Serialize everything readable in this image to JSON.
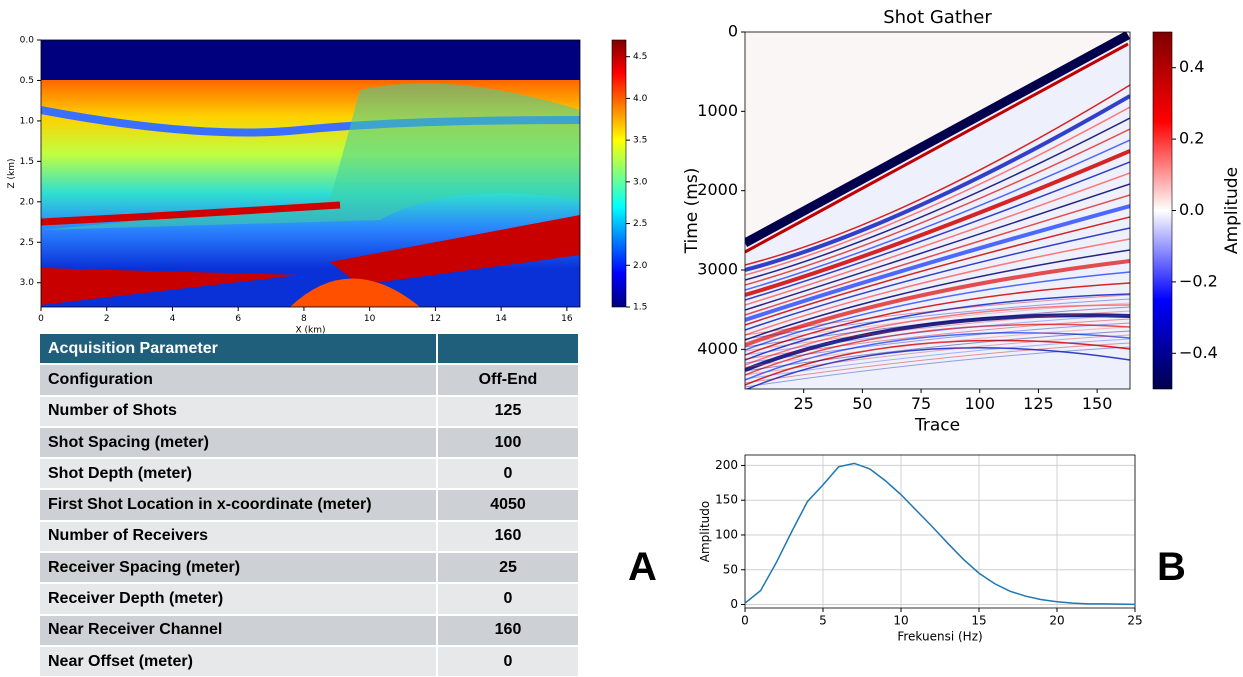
{
  "chart_data": [
    {
      "type": "heatmap",
      "xlabel": "X (km)",
      "ylabel": "Z (km)",
      "xlim": [
        0,
        16.4
      ],
      "xticks": [
        0,
        2,
        4,
        6,
        8,
        10,
        12,
        14,
        16
      ],
      "ylim": [
        3.3,
        0
      ],
      "yticks": [
        {
          "value": 0,
          "label": "0.0"
        },
        0.5,
        {
          "value": 1,
          "label": "1.0"
        },
        1.5,
        {
          "value": 2,
          "label": "2.0"
        },
        2.5,
        {
          "value": 3,
          "label": "3.0"
        }
      ],
      "colorbar": {
        "clim": [
          1.5,
          4.7
        ],
        "ticks": [
          1.5,
          {
            "value": 2,
            "label": "2.0"
          },
          2.5,
          {
            "value": 3,
            "label": "3.0"
          },
          3.5,
          {
            "value": 4,
            "label": "4.0"
          },
          4.5
        ],
        "colormap": "jet"
      }
    },
    {
      "type": "heatmap",
      "title": "Shot Gather",
      "xlabel": "Trace",
      "ylabel": "Time (ms)",
      "xlim": [
        0,
        164
      ],
      "xticks": [
        25,
        50,
        75,
        100,
        125,
        150
      ],
      "ylim": [
        4500,
        0
      ],
      "yticks": [
        0,
        1000,
        2000,
        3000,
        4000
      ],
      "colorbar": {
        "label": "Amplitude",
        "clim": [
          -0.5,
          0.5
        ],
        "ticks": [
          {
            "value": -0.4,
            "label": "−0.4"
          },
          {
            "value": -0.2,
            "label": "−0.2"
          },
          {
            "value": 0,
            "label": "0.0"
          },
          0.2,
          0.4
        ],
        "colormap": "seismic"
      }
    },
    {
      "type": "line",
      "xlabel": "Frekuensi (Hz)",
      "ylabel": "Amplitudo",
      "color": "#1f77b4",
      "grid": true,
      "x": [
        0,
        1,
        2,
        3,
        4,
        5,
        6,
        7,
        8,
        9,
        10,
        11,
        12,
        13,
        14,
        15,
        16,
        17,
        18,
        19,
        20,
        21,
        22,
        23,
        24,
        25
      ],
      "values": [
        2,
        20,
        60,
        105,
        148,
        172,
        198,
        203,
        195,
        178,
        158,
        135,
        112,
        88,
        65,
        45,
        30,
        19,
        12,
        7,
        4,
        2,
        1,
        1,
        0.5,
        0.3
      ],
      "xlim": [
        0,
        25
      ],
      "xticks": [
        0,
        5,
        10,
        15,
        20,
        25
      ],
      "ylim": [
        -5,
        215
      ],
      "yticks": [
        0,
        50,
        100,
        150,
        200
      ]
    }
  ],
  "table": {
    "header": "Acquisition Parameter",
    "rows": [
      [
        "Configuration",
        "Off-End"
      ],
      [
        "Number of Shots",
        125
      ],
      [
        "Shot Spacing (meter)",
        100
      ],
      [
        "Shot Depth (meter)",
        0
      ],
      [
        "First Shot Location in x-coordinate (meter)",
        4050
      ],
      [
        "Number of Receivers",
        160
      ],
      [
        "Receiver Spacing (meter)",
        25
      ],
      [
        "Receiver Depth (meter)",
        0
      ],
      [
        "Near Receiver Channel",
        160
      ],
      [
        "Near Offset (meter)",
        0
      ]
    ]
  },
  "panel_labels": [
    "A",
    "B"
  ]
}
